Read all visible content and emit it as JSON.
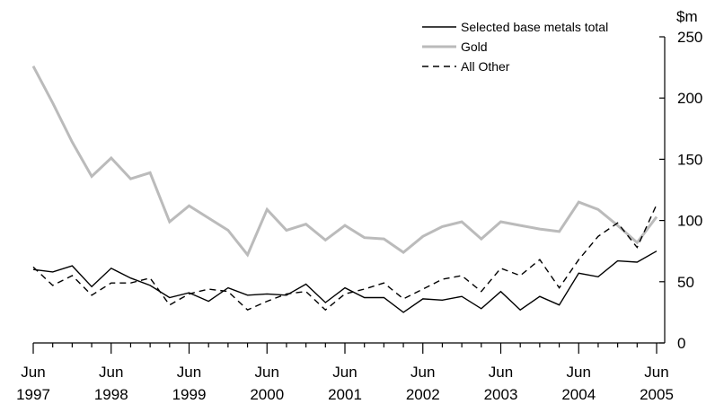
{
  "chart_data": {
    "type": "line",
    "title": "",
    "xlabel": "",
    "ylabel": "",
    "unit": "$m",
    "ylim": [
      0,
      250
    ],
    "y_ticks": [
      "0",
      "50",
      "100",
      "150",
      "200",
      "250"
    ],
    "y_axis_side": "right",
    "grid": false,
    "legend_placement": "top-right",
    "x_tick_labels": [
      {
        "month": "Jun",
        "year": "1997"
      },
      {
        "month": "Jun",
        "year": "1998"
      },
      {
        "month": "Jun",
        "year": "1999"
      },
      {
        "month": "Jun",
        "year": "2000"
      },
      {
        "month": "Jun",
        "year": "2001"
      },
      {
        "month": "Jun",
        "year": "2002"
      },
      {
        "month": "Jun",
        "year": "2003"
      },
      {
        "month": "Jun",
        "year": "2004"
      },
      {
        "month": "Jun",
        "year": "2005"
      }
    ],
    "x": [
      "Jun 1997",
      "Sep 1997",
      "Dec 1997",
      "Mar 1998",
      "Jun 1998",
      "Sep 1998",
      "Dec 1998",
      "Mar 1999",
      "Jun 1999",
      "Sep 1999",
      "Dec 1999",
      "Mar 2000",
      "Jun 2000",
      "Sep 2000",
      "Dec 2000",
      "Mar 2001",
      "Jun 2001",
      "Sep 2001",
      "Dec 2001",
      "Mar 2002",
      "Jun 2002",
      "Sep 2002",
      "Dec 2002",
      "Mar 2003",
      "Jun 2003",
      "Sep 2003",
      "Dec 2003",
      "Mar 2004",
      "Jun 2004",
      "Sep 2004",
      "Dec 2004",
      "Mar 2005",
      "Jun 2005"
    ],
    "series": [
      {
        "name": "Selected base metals total",
        "color": "#000000",
        "dash": "solid",
        "values": [
          60,
          58,
          63,
          46,
          61,
          53,
          47,
          37,
          41,
          34,
          45,
          39,
          40,
          39,
          48,
          33,
          45,
          37,
          37,
          25,
          36,
          35,
          38,
          28,
          42,
          27,
          38,
          31,
          57,
          54,
          67,
          66,
          75
        ]
      },
      {
        "name": "Gold",
        "color": "#bbbbbb",
        "dash": "solid",
        "values": [
          226,
          196,
          164,
          136,
          151,
          134,
          139,
          99,
          112,
          102,
          92,
          72,
          109,
          92,
          97,
          84,
          96,
          86,
          85,
          74,
          87,
          95,
          99,
          85,
          99,
          96,
          93,
          91,
          115,
          109,
          96,
          82,
          103
        ]
      },
      {
        "name": "All Other",
        "color": "#000000",
        "dash": "dashed",
        "values": [
          62,
          47,
          55,
          39,
          49,
          49,
          53,
          31,
          40,
          44,
          42,
          27,
          34,
          40,
          42,
          27,
          40,
          44,
          49,
          36,
          44,
          52,
          55,
          42,
          61,
          55,
          68,
          45,
          68,
          87,
          98,
          78,
          113
        ]
      }
    ]
  }
}
